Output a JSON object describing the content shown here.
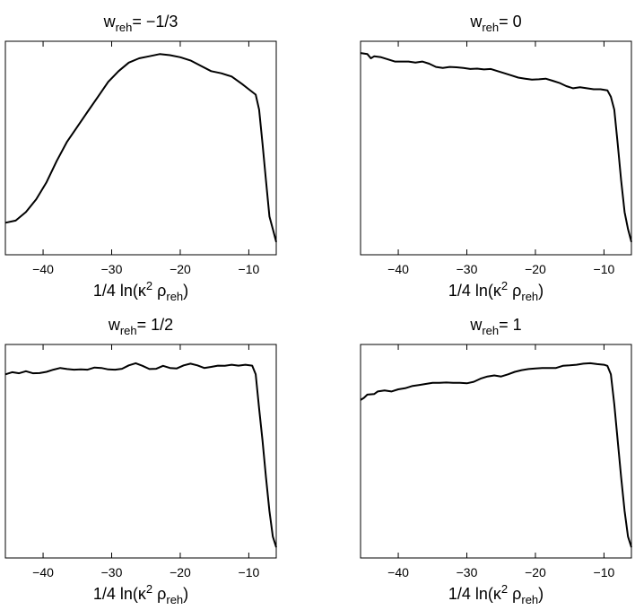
{
  "chart_data": [
    {
      "type": "line",
      "title_main": "w",
      "title_sub": "reh",
      "title_value": "= −1/3",
      "xlabel_main": "1/4 ln(κ",
      "xlabel_sup": "2",
      "xlabel_mid": " ρ",
      "xlabel_sub": "reh",
      "xlabel_end": ")",
      "xlim": [
        -45.5,
        -6
      ],
      "ylim": [
        0,
        1
      ],
      "xticks": [
        -40,
        -30,
        -20,
        -10
      ],
      "xtick_labels": [
        "−40",
        "−30",
        "−20",
        "−10"
      ],
      "line_color": "#000000",
      "x": [
        -45.5,
        -44,
        -42.5,
        -41,
        -39.5,
        -38,
        -36.5,
        -35,
        -33.5,
        -32,
        -30.5,
        -29,
        -27.5,
        -26,
        -24.5,
        -23,
        -21.5,
        -20,
        -18.5,
        -17,
        -15.5,
        -14,
        -12.5,
        -11,
        -10,
        -9,
        -8.5,
        -8,
        -7.5,
        -7,
        -6.5,
        -6
      ],
      "y": [
        0.15,
        0.16,
        0.2,
        0.26,
        0.34,
        0.44,
        0.53,
        0.6,
        0.67,
        0.74,
        0.81,
        0.86,
        0.9,
        0.92,
        0.93,
        0.94,
        0.935,
        0.925,
        0.91,
        0.885,
        0.86,
        0.85,
        0.835,
        0.8,
        0.775,
        0.75,
        0.68,
        0.52,
        0.35,
        0.18,
        0.12,
        0.06
      ]
    },
    {
      "type": "line",
      "title_main": "w",
      "title_sub": "reh",
      "title_value": "= 0",
      "xlabel_main": "1/4 ln(κ",
      "xlabel_sup": "2",
      "xlabel_mid": " ρ",
      "xlabel_sub": "reh",
      "xlabel_end": ")",
      "xlim": [
        -45.5,
        -6
      ],
      "ylim": [
        0,
        1
      ],
      "xticks": [
        -40,
        -30,
        -20,
        -10
      ],
      "xtick_labels": [
        "−40",
        "−30",
        "−20",
        "−10"
      ],
      "line_color": "#000000",
      "x": [
        -45.5,
        -44.5,
        -44,
        -43.5,
        -42.5,
        -41.5,
        -40.5,
        -39.5,
        -38.5,
        -37.5,
        -36.5,
        -35.5,
        -34.5,
        -33.5,
        -32.5,
        -31.5,
        -30.5,
        -29.5,
        -28.5,
        -27.5,
        -26.5,
        -25.5,
        -24.5,
        -23.5,
        -22.5,
        -21.5,
        -20.5,
        -19.5,
        -18.5,
        -17.5,
        -16.5,
        -15.5,
        -14.5,
        -13.5,
        -12.5,
        -11.5,
        -10.5,
        -9.5,
        -9,
        -8.5,
        -8,
        -7.5,
        -7,
        -6.5,
        -6
      ],
      "y": [
        0.945,
        0.94,
        0.92,
        0.93,
        0.925,
        0.915,
        0.905,
        0.905,
        0.905,
        0.9,
        0.905,
        0.895,
        0.88,
        0.875,
        0.88,
        0.878,
        0.875,
        0.87,
        0.872,
        0.868,
        0.87,
        0.86,
        0.85,
        0.84,
        0.83,
        0.825,
        0.82,
        0.822,
        0.825,
        0.815,
        0.805,
        0.79,
        0.78,
        0.785,
        0.78,
        0.775,
        0.775,
        0.77,
        0.74,
        0.68,
        0.52,
        0.35,
        0.2,
        0.12,
        0.06
      ]
    },
    {
      "type": "line",
      "title_main": "w",
      "title_sub": "reh",
      "title_value": "= 1/2",
      "xlabel_main": "1/4 ln(κ",
      "xlabel_sup": "2",
      "xlabel_mid": " ρ",
      "xlabel_sub": "reh",
      "xlabel_end": ")",
      "xlim": [
        -45.5,
        -6
      ],
      "ylim": [
        0,
        1
      ],
      "xticks": [
        -40,
        -30,
        -20,
        -10
      ],
      "xtick_labels": [
        "−40",
        "−30",
        "−20",
        "−10"
      ],
      "line_color": "#000000",
      "x": [
        -45.5,
        -44.5,
        -43.5,
        -42.5,
        -41.5,
        -40.5,
        -39.5,
        -38.5,
        -37.5,
        -36.5,
        -35.5,
        -34.5,
        -33.5,
        -32.5,
        -31.5,
        -30.5,
        -29.5,
        -28.5,
        -27.5,
        -26.5,
        -25.5,
        -24.5,
        -23.5,
        -22.5,
        -21.5,
        -20.5,
        -19.5,
        -18.5,
        -17.5,
        -16.5,
        -15.5,
        -14.5,
        -13.5,
        -12.5,
        -11.5,
        -10.5,
        -9.5,
        -9,
        -8.5,
        -8,
        -7.5,
        -7,
        -6.5,
        -6
      ],
      "y": [
        0.86,
        0.87,
        0.865,
        0.875,
        0.865,
        0.866,
        0.872,
        0.882,
        0.89,
        0.885,
        0.882,
        0.883,
        0.882,
        0.892,
        0.89,
        0.883,
        0.882,
        0.886,
        0.902,
        0.912,
        0.9,
        0.885,
        0.886,
        0.9,
        0.89,
        0.888,
        0.902,
        0.91,
        0.902,
        0.89,
        0.895,
        0.901,
        0.9,
        0.905,
        0.901,
        0.905,
        0.901,
        0.86,
        0.7,
        0.55,
        0.38,
        0.22,
        0.1,
        0.05
      ]
    },
    {
      "type": "line",
      "title_main": "w",
      "title_sub": "reh",
      "title_value": "= 1",
      "xlabel_main": "1/4 ln(κ",
      "xlabel_sup": "2",
      "xlabel_mid": " ρ",
      "xlabel_sub": "reh",
      "xlabel_end": ")",
      "xlim": [
        -45.5,
        -6
      ],
      "ylim": [
        0,
        1
      ],
      "xticks": [
        -40,
        -30,
        -20,
        -10
      ],
      "xtick_labels": [
        "−40",
        "−30",
        "−20",
        "−10"
      ],
      "line_color": "#000000",
      "x": [
        -45.5,
        -45,
        -44.5,
        -43.5,
        -43,
        -42,
        -41,
        -40,
        -39,
        -38,
        -37,
        -36,
        -35,
        -34,
        -33,
        -32,
        -31,
        -30,
        -29,
        -28,
        -27,
        -26,
        -25,
        -24,
        -23,
        -22,
        -21,
        -20,
        -19,
        -18,
        -17,
        -16,
        -15,
        -14,
        -13,
        -12,
        -11,
        -10,
        -9.5,
        -9,
        -8.5,
        -8,
        -7.5,
        -7,
        -6.5,
        -6
      ],
      "y": [
        0.74,
        0.75,
        0.765,
        0.768,
        0.78,
        0.785,
        0.78,
        0.79,
        0.795,
        0.805,
        0.81,
        0.815,
        0.82,
        0.82,
        0.822,
        0.82,
        0.82,
        0.818,
        0.825,
        0.84,
        0.85,
        0.855,
        0.85,
        0.86,
        0.872,
        0.88,
        0.885,
        0.888,
        0.89,
        0.89,
        0.89,
        0.9,
        0.902,
        0.905,
        0.91,
        0.912,
        0.908,
        0.905,
        0.9,
        0.86,
        0.72,
        0.55,
        0.38,
        0.22,
        0.1,
        0.05
      ]
    }
  ]
}
